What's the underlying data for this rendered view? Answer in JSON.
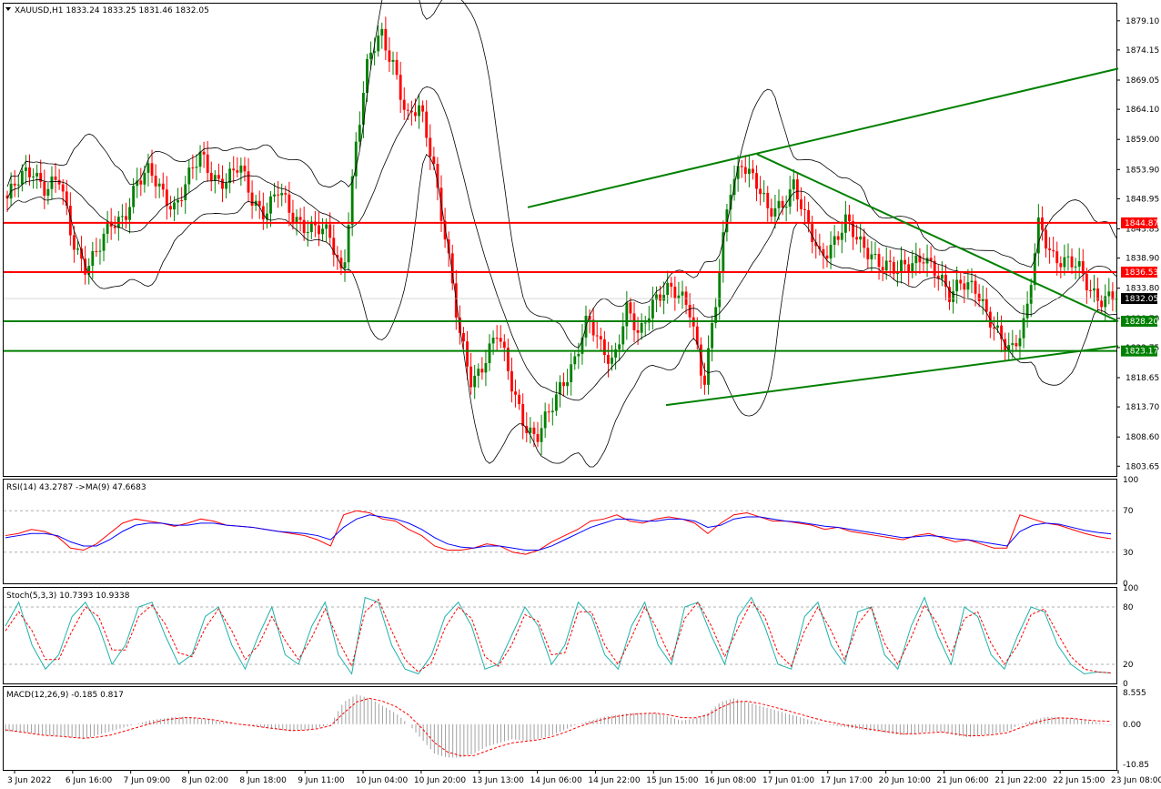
{
  "header": {
    "symbol_caption": "XAUUSD,H1  1833.24 1833.25 1831.46 1832.05"
  },
  "chart_data": [
    {
      "type": "candlestick",
      "title": "XAUUSD,H1",
      "ohlc_current": {
        "open": 1833.24,
        "high": 1833.25,
        "low": 1831.46,
        "close": 1832.05
      },
      "ylim": [
        1802.0,
        1882.0
      ],
      "yticks": [
        "1879.10",
        "1874.15",
        "1869.05",
        "1864.10",
        "1859.00",
        "1853.90",
        "1848.95",
        "1843.85",
        "1838.90",
        "1833.80",
        "1828.70",
        "1823.75",
        "1818.65",
        "1813.70",
        "1808.60",
        "1803.65"
      ],
      "xticks": [
        "3 Jun 2022",
        "6 Jun 16:00",
        "7 Jun 09:00",
        "8 Jun 02:00",
        "8 Jun 18:00",
        "9 Jun 11:00",
        "10 Jun 04:00",
        "10 Jun 20:00",
        "13 Jun 13:00",
        "14 Jun 06:00",
        "14 Jun 22:00",
        "15 Jun 15:00",
        "16 Jun 08:00",
        "17 Jun 01:00",
        "17 Jun 17:00",
        "20 Jun 10:00",
        "21 Jun 06:00",
        "21 Jun 22:00",
        "22 Jun 15:00",
        "23 Jun 08:00"
      ],
      "close_path": [
        1849,
        1852,
        1854,
        1851,
        1852,
        1842,
        1838,
        1840,
        1844,
        1846,
        1852,
        1853,
        1850,
        1848,
        1852,
        1856,
        1853,
        1852,
        1854,
        1849,
        1847,
        1850,
        1846,
        1845,
        1844,
        1842,
        1836,
        1858,
        1872,
        1877,
        1872,
        1862,
        1864,
        1856,
        1842,
        1826,
        1818,
        1822,
        1826,
        1818,
        1812,
        1808,
        1812,
        1818,
        1822,
        1828,
        1824,
        1822,
        1830,
        1825,
        1832,
        1834,
        1832,
        1830,
        1818,
        1832,
        1850,
        1856,
        1852,
        1846,
        1848,
        1852,
        1844,
        1839,
        1842,
        1845,
        1841,
        1840,
        1838,
        1836,
        1838,
        1840,
        1836,
        1832,
        1836,
        1834,
        1828,
        1826,
        1824,
        1828,
        1845,
        1840,
        1838,
        1837,
        1834,
        1832,
        1832.05
      ],
      "bollinger_band_color": "#000000",
      "bull_color": "#008000",
      "bear_color": "#ff0000",
      "horizontal_levels": [
        {
          "value": 1844.87,
          "label": "1844.87",
          "color": "#ff0000"
        },
        {
          "value": 1836.53,
          "label": "1836.53",
          "color": "#ff0000"
        },
        {
          "value": 1828.2,
          "label": "1828.20",
          "color": "#008000"
        },
        {
          "value": 1823.17,
          "label": "1823.17",
          "color": "#008000"
        }
      ],
      "current_price": {
        "value": 1832.05,
        "label": "1832.05"
      },
      "trendlines": [
        {
          "name": "upper-channel",
          "from": [
            1847.5,
            "14 Jun 02:00"
          ],
          "to": [
            1871,
            "23 Jun 08:00"
          ],
          "color": "#008000"
        },
        {
          "name": "descending-resistance",
          "from": [
            1856.5,
            "16 Jun 22:00"
          ],
          "to": [
            1828.2,
            "23 Jun 08:00"
          ],
          "color": "#008000"
        },
        {
          "name": "ascending-support",
          "from": [
            1814,
            "15 Jun 13:00"
          ],
          "to": [
            1824,
            "23 Jun 08:00"
          ],
          "color": "#008000"
        }
      ]
    },
    {
      "type": "line",
      "title": "RSI(14) 43.2787  ->MA(9) 47.6683",
      "ylim": [
        0,
        100
      ],
      "yticks": [
        "100",
        "70",
        "30",
        "0"
      ],
      "levels": [
        70,
        30
      ],
      "series": [
        {
          "color": "#ff0000",
          "values": [
            46,
            48,
            52,
            50,
            45,
            34,
            32,
            38,
            48,
            58,
            62,
            60,
            58,
            55,
            58,
            62,
            60,
            56,
            55,
            54,
            52,
            50,
            48,
            46,
            42,
            36,
            66,
            70,
            68,
            62,
            60,
            52,
            46,
            36,
            32,
            32,
            34,
            38,
            36,
            30,
            28,
            32,
            40,
            46,
            52,
            60,
            62,
            66,
            60,
            58,
            62,
            64,
            62,
            58,
            48,
            58,
            66,
            68,
            64,
            60,
            60,
            58,
            56,
            52,
            54,
            50,
            48,
            46,
            44,
            42,
            46,
            48,
            44,
            40,
            42,
            38,
            34,
            34,
            66,
            62,
            58,
            56,
            52,
            48,
            45,
            43
          ]
        },
        {
          "color": "#0000ff",
          "values": [
            44,
            46,
            48,
            48,
            46,
            40,
            36,
            36,
            42,
            50,
            56,
            58,
            58,
            56,
            56,
            58,
            58,
            56,
            55,
            54,
            52,
            50,
            49,
            48,
            46,
            42,
            54,
            62,
            66,
            64,
            62,
            58,
            52,
            44,
            38,
            35,
            34,
            36,
            36,
            34,
            32,
            32,
            36,
            42,
            48,
            54,
            58,
            62,
            62,
            60,
            60,
            62,
            62,
            60,
            54,
            56,
            62,
            64,
            64,
            62,
            60,
            59,
            57,
            55,
            54,
            52,
            50,
            48,
            46,
            44,
            45,
            46,
            45,
            43,
            42,
            40,
            38,
            36,
            50,
            56,
            58,
            57,
            54,
            51,
            49,
            47.7
          ]
        }
      ]
    },
    {
      "type": "line",
      "title": "Stoch(5,3,3) 10.7393 10.9338",
      "ylim": [
        0,
        100
      ],
      "yticks": [
        "100",
        "80",
        "20",
        "0"
      ],
      "levels": [
        80,
        20
      ],
      "series": [
        {
          "color": "#20b2aa",
          "values": [
            60,
            85,
            40,
            15,
            30,
            70,
            85,
            60,
            20,
            40,
            80,
            85,
            50,
            20,
            30,
            70,
            80,
            40,
            15,
            50,
            80,
            30,
            20,
            60,
            85,
            30,
            10,
            90,
            85,
            40,
            15,
            10,
            30,
            70,
            85,
            60,
            15,
            20,
            50,
            80,
            60,
            20,
            40,
            85,
            70,
            30,
            15,
            60,
            85,
            40,
            20,
            80,
            85,
            50,
            20,
            70,
            90,
            60,
            20,
            15,
            70,
            85,
            40,
            20,
            75,
            80,
            30,
            15,
            60,
            90,
            50,
            20,
            80,
            70,
            30,
            15,
            50,
            80,
            75,
            40,
            20,
            10,
            12,
            11
          ]
        },
        {
          "color": "#ff0000",
          "values": [
            55,
            75,
            55,
            25,
            25,
            55,
            80,
            70,
            35,
            35,
            70,
            82,
            62,
            32,
            28,
            58,
            78,
            55,
            25,
            40,
            70,
            45,
            25,
            48,
            78,
            45,
            18,
            75,
            88,
            55,
            25,
            12,
            22,
            58,
            80,
            68,
            28,
            18,
            40,
            72,
            65,
            30,
            32,
            75,
            75,
            40,
            20,
            48,
            80,
            55,
            25,
            68,
            85,
            60,
            28,
            58,
            85,
            70,
            32,
            18,
            55,
            80,
            55,
            25,
            62,
            80,
            42,
            20,
            48,
            82,
            62,
            30,
            68,
            75,
            42,
            20,
            40,
            72,
            78,
            52,
            28,
            15,
            12,
            11
          ]
        }
      ]
    },
    {
      "type": "bar",
      "title": "MACD(12,26,9) -0.185 0.817",
      "ylim": [
        -10.85,
        8.555
      ],
      "yticks": [
        "8.555",
        "0.00",
        "-10.85"
      ],
      "series": [
        {
          "name": "histogram",
          "color": "#a0a0a0",
          "values": [
            -2,
            -2,
            -2.5,
            -3,
            -3,
            -3.5,
            -4,
            -3,
            -2,
            -1,
            0,
            1,
            1.5,
            2,
            2,
            1.5,
            1,
            0.5,
            0,
            -0.5,
            -1,
            -1.5,
            -2,
            -1.5,
            -1,
            0,
            6,
            8,
            7,
            5,
            3,
            0,
            -4,
            -8,
            -9,
            -9,
            -8,
            -6,
            -5,
            -4,
            -4.5,
            -4,
            -3,
            -1.5,
            0,
            1,
            2,
            2.5,
            3,
            3,
            3,
            2,
            1,
            1.5,
            3,
            6,
            7,
            6,
            5,
            4,
            3,
            2,
            1,
            0,
            -0.5,
            -1,
            -1.5,
            -2,
            -2.5,
            -3,
            -2.5,
            -2,
            -2,
            -3,
            -3.5,
            -3,
            -2.5,
            -2,
            0,
            1,
            2,
            2,
            1.5,
            1,
            0.5,
            -0.2
          ]
        },
        {
          "name": "signal",
          "color": "#ff0000",
          "values": [
            -1.5,
            -2,
            -2.5,
            -3,
            -3.2,
            -3.5,
            -3.8,
            -3.5,
            -3,
            -2,
            -1,
            0,
            1,
            1.5,
            1.8,
            1.6,
            1.2,
            0.6,
            0,
            -0.4,
            -0.9,
            -1.3,
            -1.7,
            -1.6,
            -1.2,
            -0.4,
            3,
            6,
            7,
            6.2,
            4.8,
            2.5,
            -1,
            -5,
            -7.5,
            -8.5,
            -8.5,
            -7.2,
            -6,
            -5,
            -4.6,
            -4.2,
            -3.4,
            -2.2,
            -0.8,
            0.4,
            1.4,
            2.1,
            2.6,
            2.9,
            3,
            2.5,
            1.8,
            1.7,
            2.5,
            4.5,
            6,
            6.2,
            5.6,
            4.7,
            3.8,
            2.8,
            1.8,
            0.9,
            0.2,
            -0.5,
            -1.1,
            -1.6,
            -2.1,
            -2.6,
            -2.6,
            -2.3,
            -2.1,
            -2.6,
            -3.1,
            -3.1,
            -2.8,
            -2.3,
            -1,
            0.2,
            1.2,
            1.7,
            1.6,
            1.2,
            0.9,
            0.8
          ]
        }
      ]
    }
  ]
}
